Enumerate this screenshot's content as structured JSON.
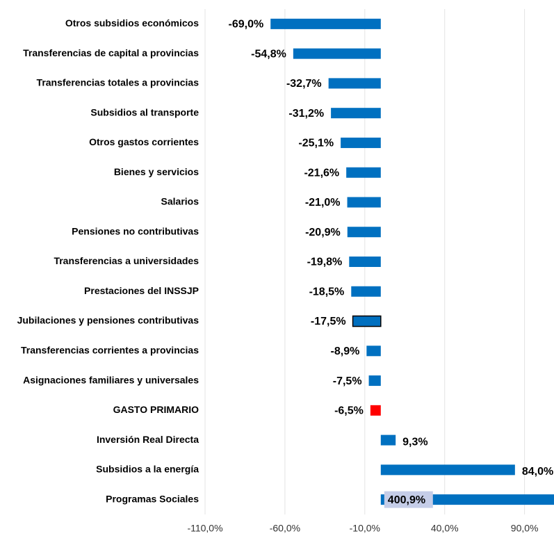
{
  "chart_data": {
    "type": "barh",
    "categories": [
      "Otros subsidios económicos",
      "Transferencias de capital a provincias",
      "Transferencias totales a provincias",
      "Subsidios al transporte",
      "Otros gastos corrientes",
      "Bienes y servicios",
      "Salarios",
      "Pensiones no contributivas",
      "Transferencias a universidades",
      "Prestaciones del INSSJP",
      "Jubilaciones y pensiones contributivas",
      "Transferencias corrientes a provincias",
      "Asignaciones familiares y universales",
      "GASTO PRIMARIO",
      "Inversión Real Directa",
      "Subsidios a la energía",
      "Programas Sociales"
    ],
    "values": [
      -69.0,
      -54.8,
      -32.7,
      -31.2,
      -25.1,
      -21.6,
      -21.0,
      -20.9,
      -19.8,
      -18.5,
      -17.5,
      -8.9,
      -7.5,
      -6.5,
      9.3,
      84.0,
      400.9
    ],
    "value_labels": [
      "-69,0%",
      "-54,8%",
      "-32,7%",
      "-31,2%",
      "-25,1%",
      "-21,6%",
      "-21,0%",
      "-20,9%",
      "-19,8%",
      "-18,5%",
      "-17,5%",
      "-8,9%",
      "-7,5%",
      "-6,5%",
      "9,3%",
      "84,0%",
      "400,9%"
    ],
    "colors": [
      "#0070c0",
      "#0070c0",
      "#0070c0",
      "#0070c0",
      "#0070c0",
      "#0070c0",
      "#0070c0",
      "#0070c0",
      "#0070c0",
      "#0070c0",
      "#0070c0",
      "#0070c0",
      "#0070c0",
      "#ff0000",
      "#0070c0",
      "#0070c0",
      "#0070c0"
    ],
    "edge_colors": [
      null,
      null,
      null,
      null,
      null,
      null,
      null,
      null,
      null,
      null,
      "#000000",
      null,
      null,
      null,
      null,
      null,
      null
    ],
    "xlim": [
      -110,
      108
    ],
    "xticks": [
      {
        "value": -110,
        "label": "-110,0%"
      },
      {
        "value": -60,
        "label": "-60,0%"
      },
      {
        "value": -10,
        "label": "-10,0%"
      },
      {
        "value": 40,
        "label": "40,0%"
      },
      {
        "value": 90,
        "label": "90,0%"
      }
    ],
    "grid": true
  }
}
